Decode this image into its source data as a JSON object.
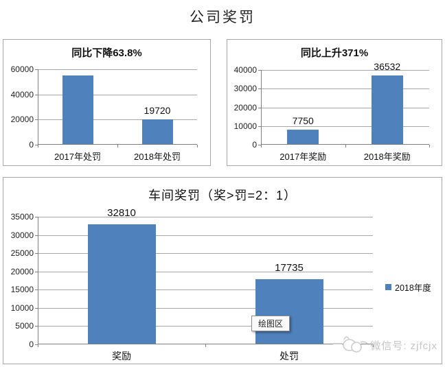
{
  "page_title": "公司奖罚",
  "colors": {
    "bar_blue": "#4F81BD",
    "panel_border": "#A6A6A6",
    "gridline": "#A6A6A6",
    "watermark_gray": "#C5C5C5"
  },
  "tooltip": {
    "label": "绘图区"
  },
  "watermark": {
    "text": "微信号: zjfcjx",
    "logo": "sketch-mascot-icon"
  },
  "chart_data": [
    {
      "type": "bar",
      "title": "同比下降63.8%",
      "categories": [
        "2017年处罚",
        "2018年处罚"
      ],
      "values": [
        54475,
        19720
      ],
      "data_labels": [
        "",
        "19720"
      ],
      "y_ticks": [
        0,
        20000,
        40000,
        60000
      ],
      "ylim": [
        0,
        60000
      ],
      "grid": true,
      "legend": null
    },
    {
      "type": "bar",
      "title": "同比上升371%",
      "categories": [
        "2017年奖励",
        "2018年奖励"
      ],
      "values": [
        7750,
        36532
      ],
      "data_labels": [
        "7750",
        "36532"
      ],
      "y_ticks": [
        0,
        10000,
        20000,
        30000,
        40000
      ],
      "ylim": [
        0,
        40000
      ],
      "grid": true,
      "legend": null
    },
    {
      "type": "bar",
      "title": "车间奖罚（奖>罚=2：1）",
      "categories": [
        "奖励",
        "处罚"
      ],
      "values": [
        32810,
        17735
      ],
      "data_labels": [
        "32810",
        "17735"
      ],
      "y_ticks": [
        0,
        5000,
        10000,
        15000,
        20000,
        25000,
        30000,
        35000
      ],
      "ylim": [
        0,
        35000
      ],
      "grid": true,
      "legend_label": "2018年度",
      "legend_position": "right"
    }
  ]
}
